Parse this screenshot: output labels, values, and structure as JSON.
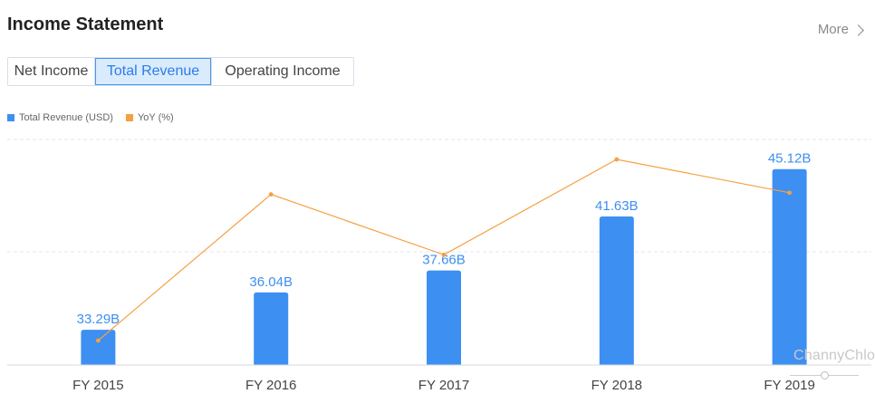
{
  "header": {
    "title": "Income Statement",
    "more_label": "More"
  },
  "tabs": [
    {
      "label": "Net Income",
      "active": false
    },
    {
      "label": "Total Revenue",
      "active": true
    },
    {
      "label": "Operating Income",
      "active": false
    }
  ],
  "legend": [
    {
      "label": "Total Revenue (USD)",
      "color": "#3d8ff2"
    },
    {
      "label": "YoY (%)",
      "color": "#f5a042"
    }
  ],
  "watermark": "ChannyChloe",
  "chart_data": {
    "type": "bar",
    "categories": [
      "FY 2015",
      "FY 2016",
      "FY 2017",
      "FY 2018",
      "FY 2019"
    ],
    "series": [
      {
        "name": "Total Revenue (USD)",
        "type": "bar",
        "values": [
          33.29,
          36.04,
          37.66,
          41.63,
          45.12
        ],
        "value_labels": [
          "33.29B",
          "36.04B",
          "37.66B",
          "41.63B",
          "45.12B"
        ],
        "color": "#3d8ff2"
      },
      {
        "name": "YoY (%)",
        "type": "line",
        "values": [
          -0.9,
          8.3,
          4.5,
          10.5,
          8.4
        ],
        "color": "#f5a042"
      }
    ],
    "grid": true,
    "legend_position": "top-left"
  }
}
